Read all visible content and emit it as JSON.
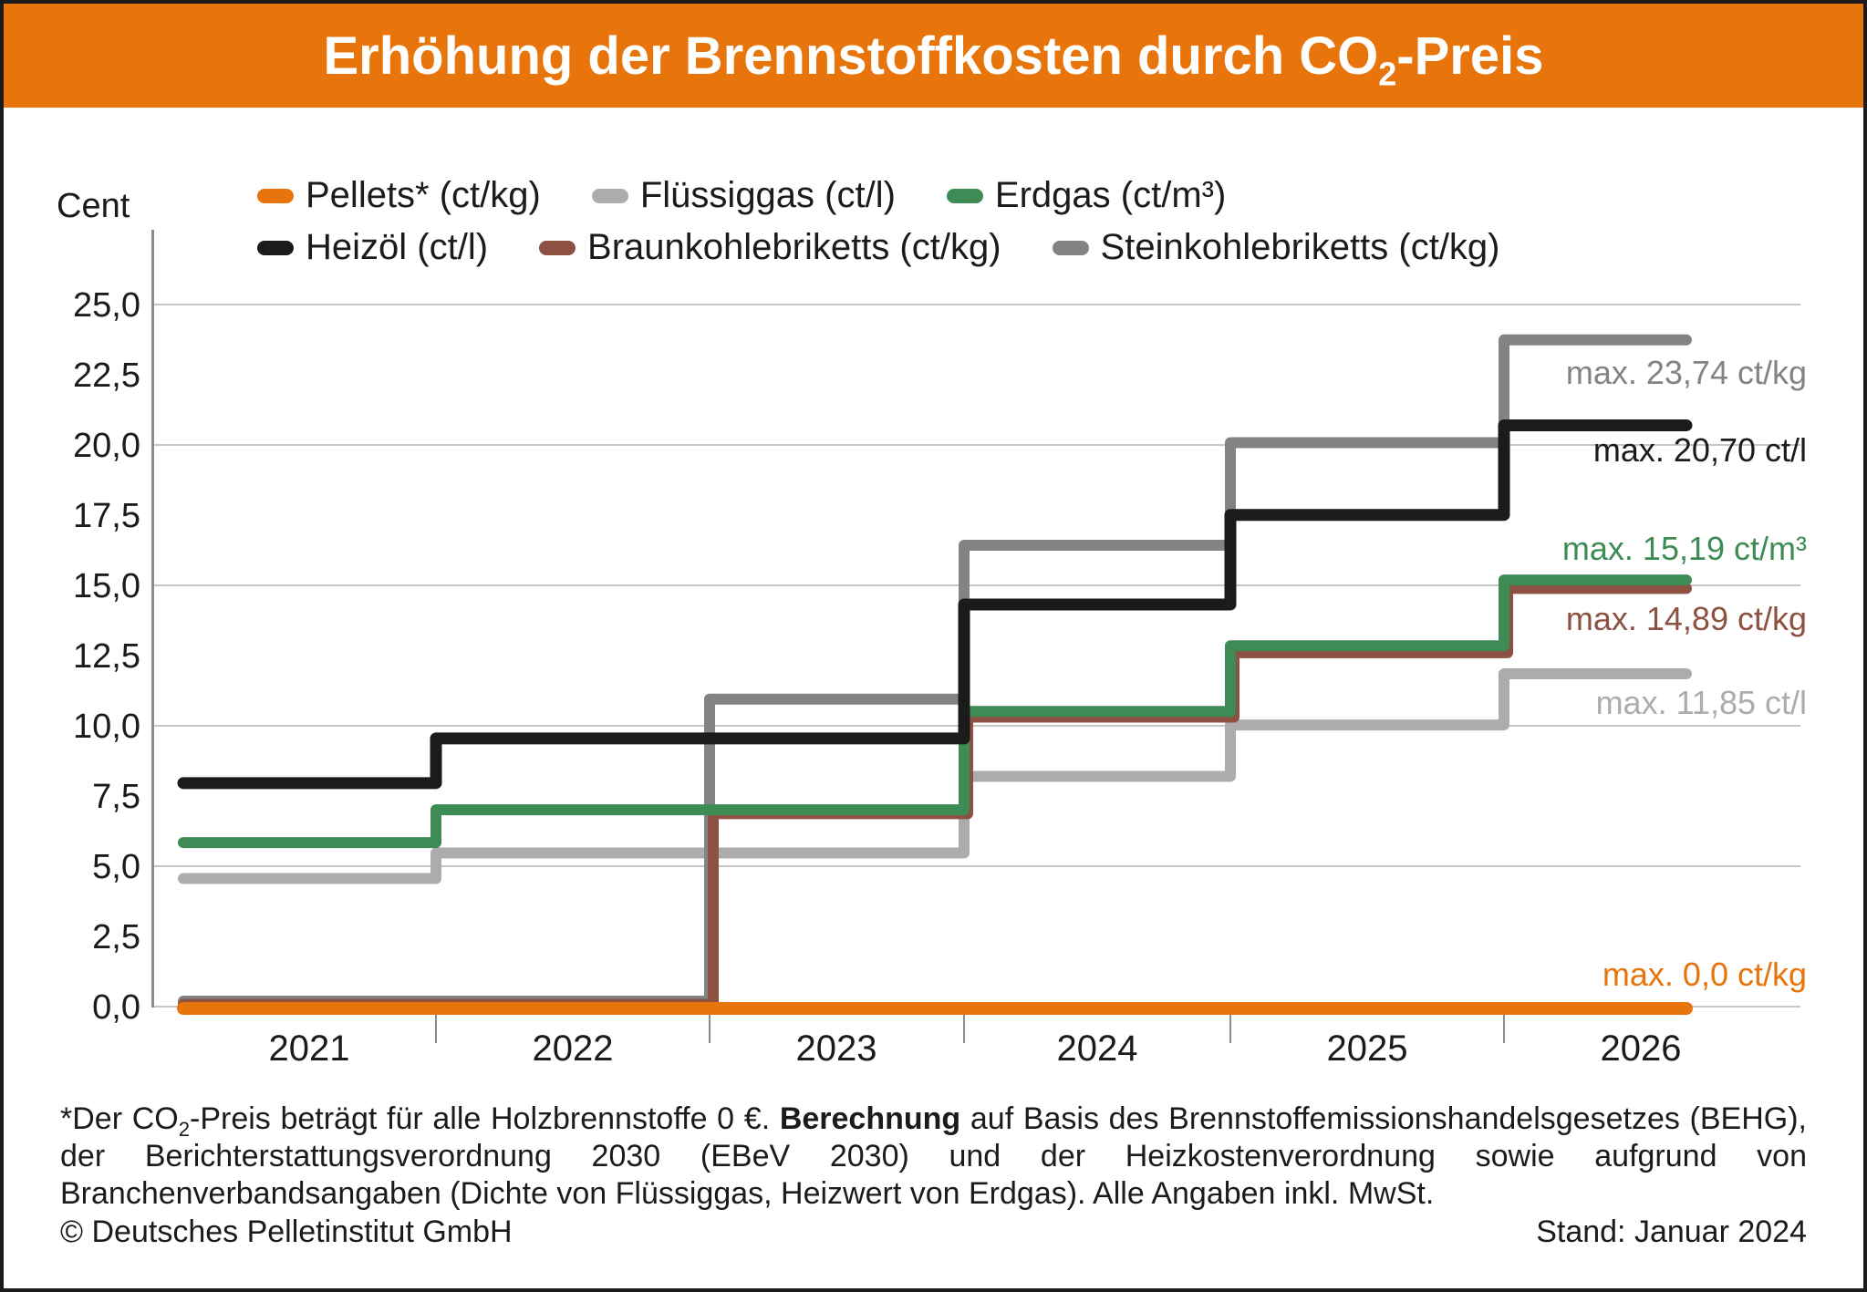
{
  "header": {
    "title_prefix": "Erhöhung der Brennstoffkosten durch CO",
    "title_sub": "2",
    "title_suffix": "-Preis",
    "band_color": "#E8740C"
  },
  "legend": {
    "items": [
      {
        "label": "Pellets* (ct/kg)",
        "color": "#E8740C"
      },
      {
        "label": "Flüssiggas (ct/l)",
        "color": "#ACACAC"
      },
      {
        "label": "Erdgas (ct/m³)",
        "color": "#3E8B55"
      },
      {
        "label": "Heizöl (ct/l)",
        "color": "#1B1B1B"
      },
      {
        "label": "Braunkohlebriketts (ct/kg)",
        "color": "#8C5140"
      },
      {
        "label": "Steinkohlebriketts (ct/kg)",
        "color": "#838383"
      }
    ]
  },
  "axis": {
    "unit_label": "Cent",
    "y_ticks": [
      {
        "v": 0,
        "label": "0,0"
      },
      {
        "v": 2.5,
        "label": "2,5"
      },
      {
        "v": 5,
        "label": "5,0"
      },
      {
        "v": 7.5,
        "label": "7,5"
      },
      {
        "v": 10,
        "label": "10,0"
      },
      {
        "v": 12.5,
        "label": "12,5"
      },
      {
        "v": 15,
        "label": "15,0"
      },
      {
        "v": 17.5,
        "label": "17,5"
      },
      {
        "v": 20,
        "label": "20,0"
      },
      {
        "v": 22.5,
        "label": "22,5"
      },
      {
        "v": 25,
        "label": "25,0"
      }
    ],
    "year_labels": [
      "2021",
      "2022",
      "2023",
      "2024",
      "2025",
      "2026"
    ]
  },
  "chart_data": {
    "type": "line",
    "step": true,
    "title": "Erhöhung der Brennstoffkosten durch CO2-Preis",
    "ylabel": "Cent",
    "ylim": [
      0,
      25
    ],
    "grid_step": 5,
    "legend_position": "top",
    "x_years": [
      2021,
      2022,
      2023,
      2024,
      2025,
      2026
    ],
    "series": [
      {
        "key": "pellets",
        "name": "Pellets* (ct/kg)",
        "color": "#E8740C",
        "values": [
          0,
          0,
          0,
          0,
          0,
          0
        ],
        "max_label": "max. 0,0 ct/kg"
      },
      {
        "key": "fluessiggas",
        "name": "Flüssiggas (ct/l)",
        "color": "#ACACAC",
        "values": [
          4.56,
          5.47,
          5.47,
          8.2,
          10.03,
          11.85
        ],
        "max_label": "max. 11,85 ct/l"
      },
      {
        "key": "erdgas",
        "name": "Erdgas (ct/m³)",
        "color": "#3E8B55",
        "values": [
          5.84,
          7.01,
          7.01,
          10.51,
          12.85,
          15.19
        ],
        "max_label": "max. 15,19 ct/m³"
      },
      {
        "key": "heizoel",
        "name": "Heizöl (ct/l)",
        "color": "#1B1B1B",
        "values": [
          7.96,
          9.55,
          9.55,
          14.32,
          17.51,
          20.7
        ],
        "max_label": "max. 20,70 ct/l"
      },
      {
        "key": "braunkohle",
        "name": "Braunkohlebriketts (ct/kg)",
        "color": "#8C5140",
        "values": [
          0,
          0,
          6.87,
          10.31,
          12.6,
          14.89
        ],
        "max_label": "max. 14,89 ct/kg"
      },
      {
        "key": "steinkohle",
        "name": "Steinkohlebriketts (ct/kg)",
        "color": "#838383",
        "values": [
          0,
          0,
          10.95,
          16.43,
          20.08,
          23.74
        ],
        "max_label": "max. 23,74 ct/kg"
      }
    ]
  },
  "footnote": {
    "part1": "*Der CO",
    "sub": "2",
    "part2": "-Preis beträgt für alle Holzbrennstoffe 0 €. ",
    "bold": "Berechnung",
    "part3": " auf Basis des Brennstoffemissionshandelsgesetzes (BEHG), der Berichterstattungsverordnung 2030 (EBeV 2030) und der Heizkostenverordnung sowie aufgrund von Branchenverbandsangaben (Dichte von Flüssiggas, Heizwert von Erdgas). Alle Angaben inkl. MwSt."
  },
  "footer": {
    "copyright": "© Deutsches Pelletinstitut GmbH",
    "stand": "Stand: Januar 2024"
  }
}
